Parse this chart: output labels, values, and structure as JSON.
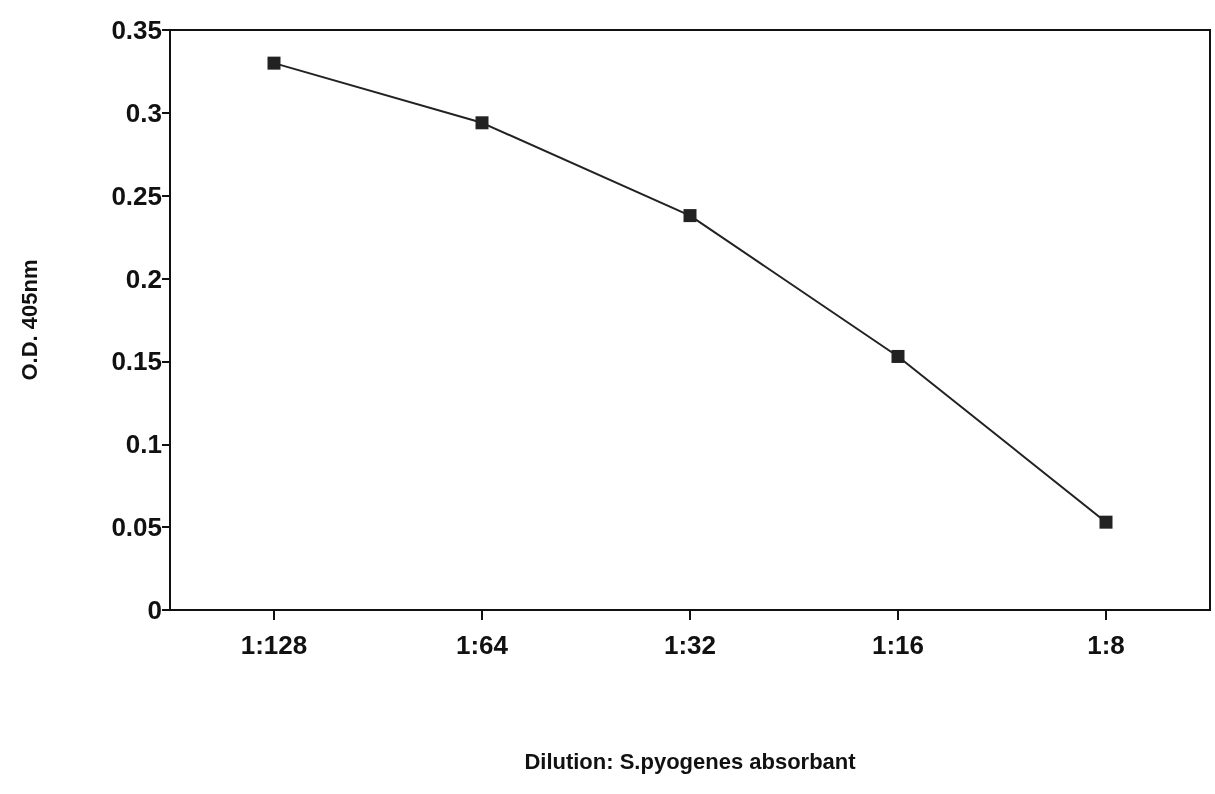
{
  "chart_data": {
    "type": "line",
    "categories": [
      "1:128",
      "1:64",
      "1:32",
      "1:16",
      "1:8"
    ],
    "values": [
      0.33,
      0.294,
      0.238,
      0.153,
      0.053
    ],
    "color": "#222222",
    "xlabel": "Dilution: S.pyogenes absorbant",
    "ylabel": "O.D. 405nm",
    "ylim": [
      0,
      0.35
    ],
    "yticks": [
      0,
      0.05,
      0.1,
      0.15,
      0.2,
      0.25,
      0.3,
      0.35
    ],
    "marker": "square",
    "line_style": "solid",
    "grid": false
  }
}
